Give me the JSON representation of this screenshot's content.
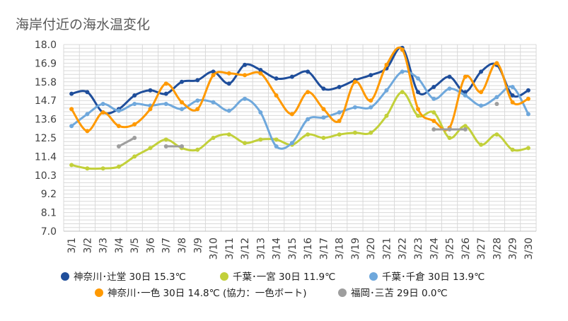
{
  "chart_data": {
    "type": "line",
    "title": "海岸付近の海水温変化",
    "xlabel": "",
    "ylabel": "",
    "categories": [
      "3/1",
      "3/2",
      "3/3",
      "3/4",
      "3/5",
      "3/6",
      "3/7",
      "3/8",
      "3/9",
      "3/10",
      "3/11",
      "3/12",
      "3/13",
      "3/14",
      "3/15",
      "3/16",
      "3/17",
      "3/18",
      "3/19",
      "3/20",
      "3/21",
      "3/22",
      "3/23",
      "3/24",
      "3/25",
      "3/26",
      "3/27",
      "3/28",
      "3/29",
      "3/30"
    ],
    "ylim": [
      7.0,
      18.0
    ],
    "yticks": [
      "18.0",
      "16.9",
      "15.8",
      "14.7",
      "13.6",
      "12.5",
      "11.4",
      "10.3",
      "9.2",
      "8.1",
      "7.0"
    ],
    "grid": true,
    "legend_position": "bottom",
    "series": [
      {
        "name": "神奈川･辻堂 30日 15.3℃",
        "color": "#1f4e9b",
        "values": [
          15.1,
          15.2,
          14.0,
          14.2,
          15.0,
          15.3,
          15.1,
          15.8,
          15.9,
          16.4,
          15.7,
          16.8,
          16.5,
          16.0,
          16.1,
          16.4,
          15.4,
          15.5,
          15.9,
          16.2,
          16.6,
          17.8,
          15.2,
          15.5,
          16.1,
          15.2,
          16.4,
          16.8,
          15.0,
          15.3
        ]
      },
      {
        "name": "千葉･一宮 30日 11.9℃",
        "color": "#c2d03a",
        "values": [
          10.9,
          10.7,
          10.7,
          10.8,
          11.4,
          11.9,
          12.4,
          11.9,
          11.8,
          12.5,
          12.7,
          12.2,
          12.4,
          12.4,
          12.1,
          12.7,
          12.5,
          12.7,
          12.8,
          12.8,
          13.8,
          15.2,
          13.8,
          14.0,
          12.5,
          13.2,
          12.1,
          12.7,
          11.8,
          11.9
        ]
      },
      {
        "name": "千葉･千倉 30日 13.9℃",
        "color": "#6fa8dc",
        "values": [
          13.2,
          13.9,
          14.5,
          14.1,
          14.5,
          14.4,
          14.5,
          14.2,
          14.7,
          14.6,
          14.1,
          14.8,
          14.0,
          12.0,
          12.2,
          13.6,
          13.7,
          14.0,
          14.3,
          14.3,
          15.3,
          16.4,
          16.0,
          14.8,
          15.4,
          15.0,
          14.4,
          14.9,
          15.5,
          13.9
        ]
      },
      {
        "name": "神奈川･一色 30日 14.8℃ (協力：一色ボート)",
        "color": "#ff9900",
        "values": [
          14.2,
          12.9,
          14.0,
          13.2,
          13.3,
          14.2,
          15.7,
          14.6,
          14.2,
          16.2,
          16.3,
          16.2,
          16.3,
          15.0,
          13.9,
          15.2,
          14.2,
          13.5,
          15.8,
          14.7,
          16.8,
          17.7,
          14.2,
          13.5,
          13.1,
          16.1,
          15.2,
          16.9,
          14.6,
          14.8
        ]
      },
      {
        "name": "福岡･三苫 29日 0.0℃",
        "color": "#9e9e9e",
        "values": [
          null,
          null,
          null,
          12.0,
          12.5,
          null,
          12.0,
          12.0,
          null,
          null,
          null,
          null,
          null,
          null,
          null,
          null,
          null,
          null,
          null,
          null,
          null,
          null,
          null,
          13.0,
          13.0,
          13.0,
          null,
          14.5,
          null,
          null
        ]
      }
    ]
  }
}
